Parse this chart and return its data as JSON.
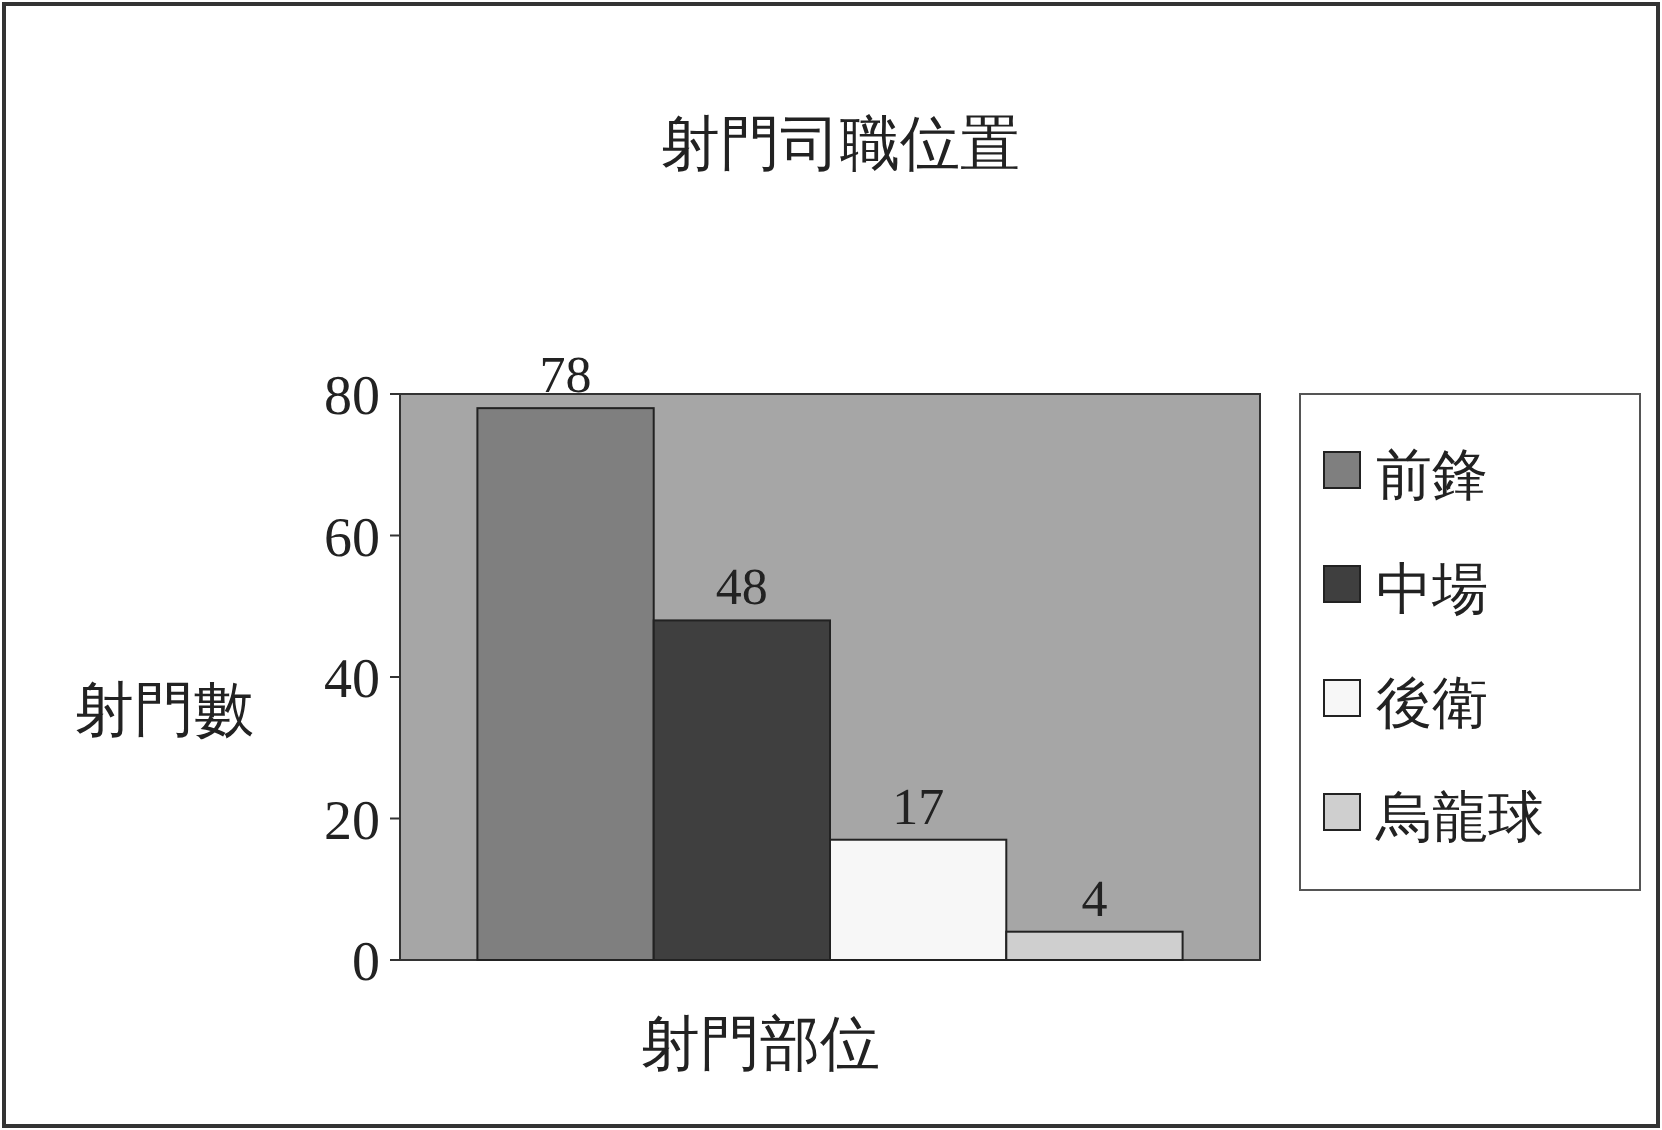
{
  "chart_data": {
    "type": "bar",
    "title": "射門司職位置",
    "xlabel": "射門部位",
    "ylabel": "射門數",
    "categories": [
      null
    ],
    "series": [
      {
        "name": "前鋒",
        "color": "#7f7f7f",
        "values": [
          78
        ]
      },
      {
        "name": "中場",
        "color": "#3f3f3f",
        "values": [
          48
        ]
      },
      {
        "name": "後衛",
        "color": "#f7f7f7",
        "values": [
          17
        ]
      },
      {
        "name": "烏龍球",
        "color": "#cfcfcf",
        "values": [
          4
        ]
      }
    ],
    "ylim": [
      0,
      80
    ],
    "yticks": [
      0,
      20,
      40,
      60,
      80
    ],
    "data_labels": true,
    "legend": "right",
    "grid": false
  }
}
